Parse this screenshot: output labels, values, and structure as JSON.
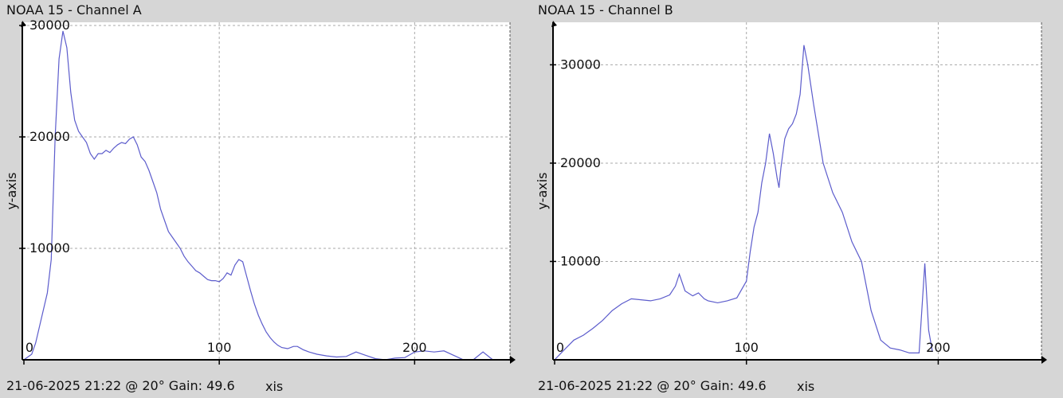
{
  "colors": {
    "background": "#d6d6d6",
    "plot_bg": "#ffffff",
    "line": "#5c5ccc",
    "grid": "#a8a8a8",
    "axis": "#000000"
  },
  "chart_data": [
    {
      "type": "line",
      "title": "NOAA 15 - Channel A",
      "footer": "21-06-2025 21:22 @ 20° Gain: 49.6",
      "xlabel": "xis",
      "ylabel": "y-axis",
      "xlim": [
        0,
        248
      ],
      "ylim": [
        0,
        30000
      ],
      "xticks": [
        0,
        100,
        200
      ],
      "yticks": [
        10000,
        20000,
        30000
      ],
      "grid": true,
      "series": [
        {
          "x": [
            0,
            4,
            6,
            8,
            10,
            12,
            14,
            16,
            18,
            20,
            22,
            24,
            26,
            28,
            30,
            32,
            34,
            36,
            38,
            40,
            42,
            44,
            46,
            48,
            50,
            52,
            54,
            56,
            58,
            60,
            62,
            64,
            66,
            68,
            70,
            72,
            74,
            76,
            78,
            80,
            82,
            84,
            86,
            88,
            90,
            92,
            94,
            96,
            98,
            100,
            102,
            104,
            106,
            108,
            110,
            112,
            114,
            116,
            118,
            120,
            122,
            124,
            126,
            128,
            130,
            132,
            135,
            138,
            140,
            143,
            146,
            150,
            155,
            160,
            165,
            170,
            175,
            180,
            185,
            190,
            195,
            200,
            205,
            210,
            215,
            220,
            225,
            230,
            235,
            240
          ],
          "y": [
            0,
            500,
            1500,
            3000,
            4500,
            6000,
            9000,
            20000,
            27000,
            29500,
            28000,
            24000,
            21500,
            20500,
            20000,
            19500,
            18500,
            18000,
            18500,
            18500,
            18800,
            18600,
            19000,
            19300,
            19500,
            19400,
            19800,
            20000,
            19300,
            18200,
            17800,
            17000,
            16000,
            15000,
            13500,
            12500,
            11500,
            11000,
            10500,
            10000,
            9300,
            8800,
            8400,
            8000,
            7800,
            7500,
            7200,
            7100,
            7100,
            7000,
            7300,
            7800,
            7600,
            8500,
            9000,
            8800,
            7500,
            6200,
            5000,
            4000,
            3200,
            2500,
            2000,
            1600,
            1300,
            1100,
            1000,
            1200,
            1200,
            900,
            700,
            500,
            350,
            250,
            300,
            700,
            400,
            100,
            0,
            150,
            200,
            700,
            800,
            700,
            800,
            400,
            0,
            0,
            700,
            0
          ]
        }
      ]
    },
    {
      "type": "line",
      "title": "NOAA 15 - Channel B",
      "footer": "21-06-2025 21:22 @ 20° Gain: 49.6",
      "xlabel": "xis",
      "ylabel": "y-axis",
      "xlim": [
        0,
        253
      ],
      "ylim": [
        0,
        34000
      ],
      "xticks": [
        0,
        100,
        200
      ],
      "yticks": [
        10000,
        20000,
        30000
      ],
      "grid": true,
      "series": [
        {
          "x": [
            0,
            5,
            10,
            15,
            20,
            25,
            30,
            35,
            40,
            45,
            50,
            55,
            60,
            63,
            65,
            68,
            72,
            75,
            78,
            80,
            85,
            90,
            95,
            100,
            102,
            104,
            106,
            108,
            110,
            112,
            114,
            116,
            117,
            118,
            120,
            122,
            124,
            126,
            128,
            130,
            132,
            135,
            140,
            145,
            150,
            155,
            160,
            165,
            170,
            175,
            180,
            185,
            190,
            193,
            195,
            197
          ],
          "y": [
            0,
            1000,
            2000,
            2500,
            3200,
            4000,
            5000,
            5700,
            6200,
            6100,
            6000,
            6200,
            6600,
            7500,
            8700,
            7000,
            6500,
            6800,
            6200,
            6000,
            5800,
            6000,
            6300,
            8000,
            11000,
            13500,
            15000,
            18000,
            20000,
            23000,
            21000,
            18500,
            17500,
            19500,
            22500,
            23500,
            24000,
            25000,
            27000,
            32000,
            30000,
            26000,
            20000,
            17000,
            15000,
            12000,
            10000,
            5000,
            2000,
            1200,
            1000,
            700,
            700,
            9800,
            3000,
            800
          ]
        }
      ]
    }
  ]
}
